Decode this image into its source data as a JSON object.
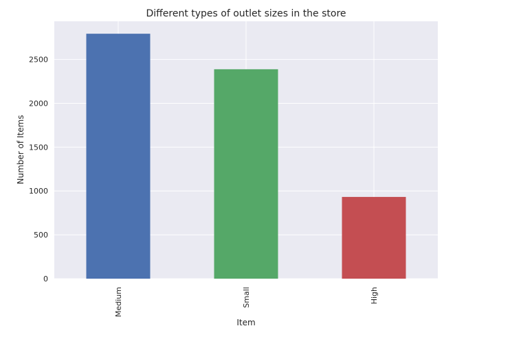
{
  "chart_data": {
    "type": "bar",
    "title": "Different types of outlet sizes in the store",
    "xlabel": "Item",
    "ylabel": "Number of Items",
    "categories": [
      "Medium",
      "Small",
      "High"
    ],
    "values": [
      2793,
      2388,
      932
    ],
    "colors": [
      "#4c72b0",
      "#55a868",
      "#c44e52"
    ],
    "ylim": [
      0,
      2935
    ],
    "yticks": [
      0,
      500,
      1000,
      1500,
      2000,
      2500
    ],
    "grid": true,
    "background": "#eaeaf2",
    "legend": "none"
  }
}
